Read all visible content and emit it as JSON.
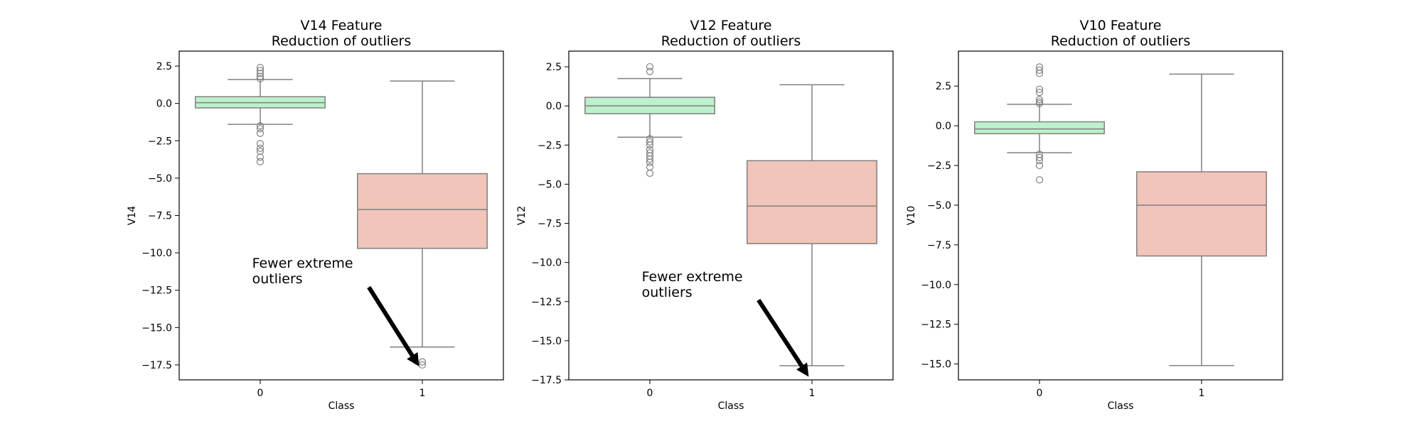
{
  "chart_data": [
    {
      "type": "box",
      "title": "V14 Feature\nReduction of outliers",
      "xlabel": "Class",
      "ylabel": "V14",
      "categories": [
        "0",
        "1"
      ],
      "ylim": [
        -18.5,
        3.5
      ],
      "yticks": [
        2.5,
        0.0,
        -2.5,
        -5.0,
        -7.5,
        -10.0,
        -12.5,
        -15.0,
        -17.5
      ],
      "ytick_labels": [
        "2.5",
        "0.0",
        "−2.5",
        "−5.0",
        "−7.5",
        "−10.0",
        "−12.5",
        "−15.0",
        "−17.5"
      ],
      "boxes": [
        {
          "category": "0",
          "whisker_low": -1.4,
          "q1": -0.3,
          "median": 0.05,
          "q3": 0.45,
          "whisker_high": 1.6,
          "outliers": [
            2.4,
            2.2,
            2.0,
            1.8,
            1.65,
            -1.5,
            -1.7,
            -2.0,
            -2.7,
            -3.0,
            -3.2,
            -3.6,
            -3.9
          ],
          "color": "#bdf0cc"
        },
        {
          "category": "1",
          "whisker_low": -16.3,
          "q1": -9.7,
          "median": -7.1,
          "q3": -4.7,
          "whisker_high": 1.5,
          "outliers": [
            -17.3,
            -17.5
          ],
          "color": "#f1c5b9"
        }
      ],
      "annotation": {
        "text_lines": [
          "Fewer extreme",
          " outliers"
        ],
        "text_x": -0.05,
        "text_y": -11.0,
        "arrow_from": [
          0.67,
          -12.3
        ],
        "arrow_to": [
          0.98,
          -17.6
        ]
      }
    },
    {
      "type": "box",
      "title": "V12 Feature\nReduction of outliers",
      "xlabel": "Class",
      "ylabel": "V12",
      "categories": [
        "0",
        "1"
      ],
      "ylim": [
        -17.5,
        3.5
      ],
      "yticks": [
        2.5,
        0.0,
        -2.5,
        -5.0,
        -7.5,
        -10.0,
        -12.5,
        -15.0,
        -17.5
      ],
      "ytick_labels": [
        "2.5",
        "0.0",
        "−2.5",
        "−5.0",
        "−7.5",
        "−10.0",
        "−12.5",
        "−15.0",
        "−17.5"
      ],
      "boxes": [
        {
          "category": "0",
          "whisker_low": -2.0,
          "q1": -0.5,
          "median": 0.0,
          "q3": 0.55,
          "whisker_high": 1.75,
          "outliers": [
            2.5,
            2.2,
            -2.1,
            -2.3,
            -2.5,
            -2.8,
            -3.0,
            -3.2,
            -3.4,
            -3.6,
            -3.9,
            -4.3
          ],
          "color": "#bdf0cc"
        },
        {
          "category": "1",
          "whisker_low": -16.6,
          "q1": -8.8,
          "median": -6.4,
          "q3": -3.5,
          "whisker_high": 1.35,
          "outliers": [],
          "color": "#f1c5b9"
        }
      ],
      "annotation": {
        "text_lines": [
          "Fewer extreme",
          " outliers"
        ],
        "text_x": -0.05,
        "text_y": -11.2,
        "arrow_from": [
          0.67,
          -12.4
        ],
        "arrow_to": [
          0.98,
          -17.3
        ]
      }
    },
    {
      "type": "box",
      "title": "V10 Feature\nReduction of outliers",
      "xlabel": "Class",
      "ylabel": "V10",
      "categories": [
        "0",
        "1"
      ],
      "ylim": [
        -16.0,
        4.7
      ],
      "yticks": [
        2.5,
        0.0,
        -2.5,
        -5.0,
        -7.5,
        -10.0,
        -12.5,
        -15.0
      ],
      "ytick_labels": [
        "2.5",
        "0.0",
        "−2.5",
        "−5.0",
        "−7.5",
        "−10.0",
        "−12.5",
        "−15.0"
      ],
      "boxes": [
        {
          "category": "0",
          "whisker_low": -1.7,
          "q1": -0.5,
          "median": -0.2,
          "q3": 0.25,
          "whisker_high": 1.35,
          "outliers": [
            3.7,
            3.5,
            3.3,
            2.3,
            2.1,
            1.65,
            1.5,
            1.4,
            -1.8,
            -2.0,
            -2.2,
            -2.5,
            -3.4
          ],
          "color": "#bdf0cc"
        },
        {
          "category": "1",
          "whisker_low": -15.1,
          "q1": -8.2,
          "median": -5.0,
          "q3": -2.9,
          "whisker_high": 3.25,
          "outliers": [],
          "color": "#f1c5b9"
        }
      ],
      "annotation": null
    }
  ],
  "style": {
    "box_edge": "#808080",
    "arrow_color": "#000000"
  }
}
